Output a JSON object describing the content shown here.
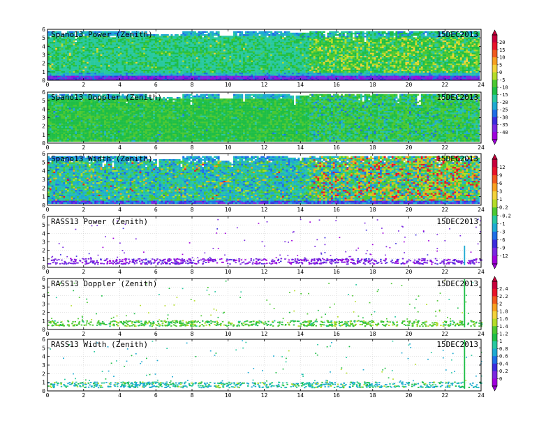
{
  "chart_data": [
    {
      "type": "heatmap",
      "title": "Spano13 Power (Zenith)",
      "date": "15DEC2013",
      "x_ticks": [
        0,
        2,
        4,
        6,
        8,
        10,
        12,
        14,
        16,
        18,
        20,
        22,
        24
      ],
      "y_ticks": [
        0,
        1,
        2,
        3,
        4,
        5,
        6
      ],
      "xlim": [
        0,
        24
      ],
      "ylim": [
        0,
        6
      ],
      "colorbar": "scale_a",
      "kind": "spano_power"
    },
    {
      "type": "heatmap",
      "title": "Spano13 Doppler (Zenith)",
      "date": "15DEC2013",
      "x_ticks": [
        0,
        2,
        4,
        6,
        8,
        10,
        12,
        14,
        16,
        18,
        20,
        22,
        24
      ],
      "y_ticks": [
        0,
        1,
        2,
        3,
        4,
        5,
        6
      ],
      "xlim": [
        0,
        24
      ],
      "ylim": [
        0,
        6
      ],
      "colorbar": "scale_a",
      "kind": "spano_doppler"
    },
    {
      "type": "heatmap",
      "title": "Spano13 Width (Zenith)",
      "date": "15DEC2013",
      "x_ticks": [
        0,
        2,
        4,
        6,
        8,
        10,
        12,
        14,
        16,
        18,
        20,
        22,
        24
      ],
      "y_ticks": [
        0,
        1,
        2,
        3,
        4,
        5,
        6
      ],
      "xlim": [
        0,
        24
      ],
      "ylim": [
        0,
        6
      ],
      "colorbar": "scale_b",
      "kind": "spano_width"
    },
    {
      "type": "scatter",
      "title": "RASS13 Power (Zenith)",
      "date": "15DEC2013",
      "x_ticks": [
        0,
        2,
        4,
        6,
        8,
        10,
        12,
        14,
        16,
        18,
        20,
        22,
        24
      ],
      "y_ticks": [
        0,
        1,
        2,
        3,
        4,
        5,
        6
      ],
      "xlim": [
        0,
        24
      ],
      "ylim": [
        0,
        6
      ],
      "grid": true,
      "colorbar": "scale_b",
      "kind": "rass_power"
    },
    {
      "type": "scatter",
      "title": "RASS13 Doppler (Zenith)",
      "date": "15DEC2013",
      "x_ticks": [
        0,
        2,
        4,
        6,
        8,
        10,
        12,
        14,
        16,
        18,
        20,
        22,
        24
      ],
      "y_ticks": [
        0,
        1,
        2,
        3,
        4,
        5,
        6
      ],
      "xlim": [
        0,
        24
      ],
      "ylim": [
        0,
        6
      ],
      "grid": true,
      "colorbar": "scale_c",
      "kind": "rass_doppler"
    },
    {
      "type": "scatter",
      "title": "RASS13 Width (Zenith)",
      "date": "15DEC2013",
      "x_ticks": [
        0,
        2,
        4,
        6,
        8,
        10,
        12,
        14,
        16,
        18,
        20,
        22,
        24
      ],
      "y_ticks": [
        0,
        1,
        2,
        3,
        4,
        5,
        6
      ],
      "xlim": [
        0,
        24
      ],
      "ylim": [
        0,
        6
      ],
      "grid": true,
      "colorbar": "scale_c",
      "kind": "rass_width"
    }
  ],
  "colorbars": {
    "scale_a": {
      "labels": [
        "20",
        "15",
        "10",
        "5",
        "0",
        "-5",
        "-10",
        "-15",
        "-20",
        "-25",
        "-30",
        "-35",
        "-40"
      ],
      "colors": [
        "#c8003c",
        "#e8142a",
        "#f05a1e",
        "#f7a020",
        "#f3d23a",
        "#b4dc28",
        "#4cc832",
        "#1ebe46",
        "#28c8a0",
        "#1eaad2",
        "#1e6ee6",
        "#3c2cdc",
        "#7a28e0",
        "#a000dc"
      ]
    },
    "scale_b": {
      "labels": [
        "12",
        "9",
        "6",
        "3",
        "1",
        "0.2",
        "-0.2",
        "-1",
        "-3",
        "-6",
        "-9",
        "-12"
      ],
      "colors": [
        "#c8003c",
        "#e8142a",
        "#f05a1e",
        "#f7a020",
        "#f3d23a",
        "#b4dc28",
        "#4cc832",
        "#28c8a0",
        "#1eaad2",
        "#1e6ee6",
        "#3c2cdc",
        "#7a28e0",
        "#a000dc"
      ]
    },
    "scale_c": {
      "labels": [
        "2.4",
        "2.2",
        "2",
        "1.8",
        "1.6",
        "1.4",
        "1.2",
        "1",
        "0.8",
        "0.6",
        "0.4",
        "0.2",
        "0"
      ],
      "colors": [
        "#c8003c",
        "#e8142a",
        "#f05a1e",
        "#f7a020",
        "#f3d23a",
        "#b4dc28",
        "#4cc832",
        "#1ebe46",
        "#28c8a0",
        "#1eaad2",
        "#1e6ee6",
        "#3c2cdc",
        "#7a28e0",
        "#a000dc"
      ]
    }
  }
}
